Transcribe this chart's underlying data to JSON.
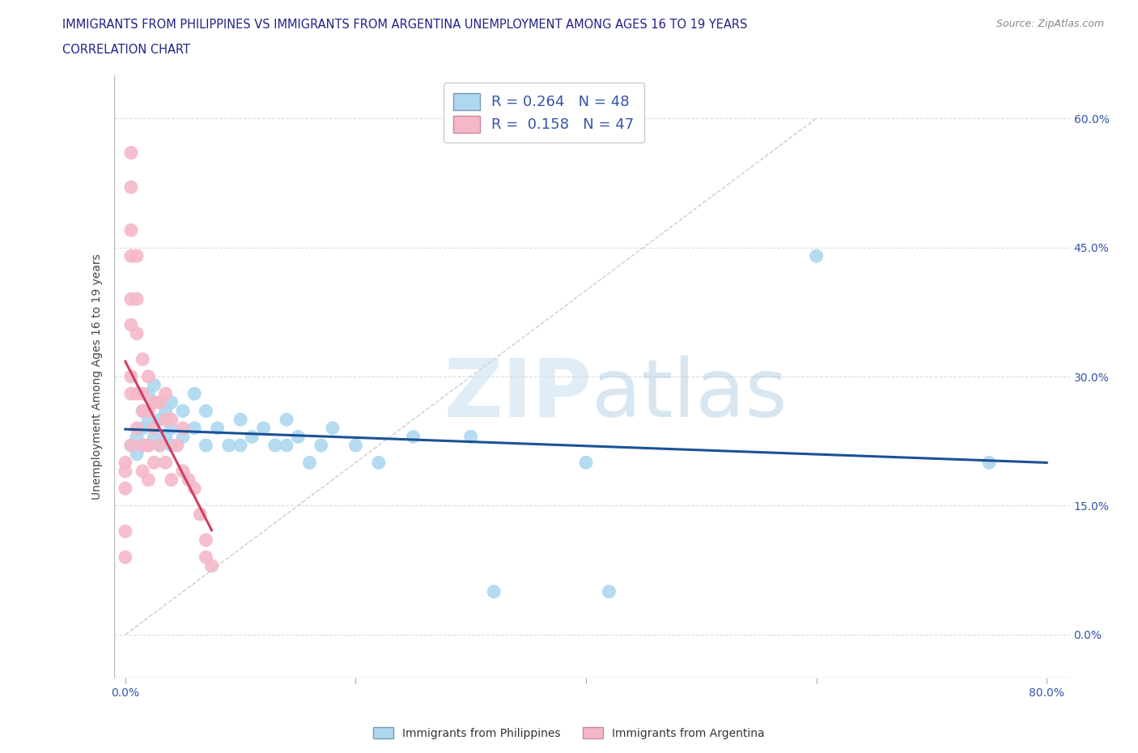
{
  "title_line1": "IMMIGRANTS FROM PHILIPPINES VS IMMIGRANTS FROM ARGENTINA UNEMPLOYMENT AMONG AGES 16 TO 19 YEARS",
  "title_line2": "CORRELATION CHART",
  "source_text": "Source: ZipAtlas.com",
  "ylabel": "Unemployment Among Ages 16 to 19 years",
  "xlabel_ticks": [
    "0.0%",
    "",
    "",
    "",
    "80.0%"
  ],
  "xlabel_tick_vals": [
    0.0,
    0.2,
    0.4,
    0.6,
    0.8
  ],
  "ytick_labels_right": [
    "0.0%",
    "15.0%",
    "30.0%",
    "45.0%",
    "60.0%"
  ],
  "ytick_vals": [
    0.0,
    0.15,
    0.3,
    0.45,
    0.6
  ],
  "xlim": [
    -0.01,
    0.82
  ],
  "ylim": [
    -0.05,
    0.65
  ],
  "philippines_color": "#ADD8F0",
  "argentina_color": "#F5B8C8",
  "trend_philippines_color": "#1A5296",
  "trend_argentina_color": "#D04060",
  "watermark_zip": "ZIP",
  "watermark_atlas": "atlas",
  "legend_R_philippines": "0.264",
  "legend_N_philippines": "48",
  "legend_R_argentina": "0.158",
  "legend_N_argentina": "47",
  "philippines_x": [
    0.005,
    0.01,
    0.01,
    0.015,
    0.015,
    0.015,
    0.02,
    0.02,
    0.02,
    0.025,
    0.025,
    0.025,
    0.03,
    0.03,
    0.03,
    0.035,
    0.035,
    0.04,
    0.04,
    0.04,
    0.05,
    0.05,
    0.06,
    0.06,
    0.07,
    0.07,
    0.08,
    0.09,
    0.1,
    0.1,
    0.11,
    0.12,
    0.13,
    0.14,
    0.14,
    0.15,
    0.16,
    0.17,
    0.18,
    0.2,
    0.22,
    0.25,
    0.3,
    0.32,
    0.4,
    0.42,
    0.6,
    0.75
  ],
  "philippines_y": [
    0.22,
    0.21,
    0.23,
    0.26,
    0.24,
    0.22,
    0.28,
    0.25,
    0.22,
    0.29,
    0.27,
    0.23,
    0.27,
    0.25,
    0.22,
    0.26,
    0.23,
    0.27,
    0.24,
    0.22,
    0.26,
    0.23,
    0.28,
    0.24,
    0.26,
    0.22,
    0.24,
    0.22,
    0.25,
    0.22,
    0.23,
    0.24,
    0.22,
    0.25,
    0.22,
    0.23,
    0.2,
    0.22,
    0.24,
    0.22,
    0.2,
    0.23,
    0.23,
    0.05,
    0.2,
    0.05,
    0.44,
    0.2
  ],
  "argentina_x": [
    0.0,
    0.0,
    0.0,
    0.0,
    0.0,
    0.005,
    0.005,
    0.005,
    0.005,
    0.005,
    0.005,
    0.005,
    0.005,
    0.005,
    0.01,
    0.01,
    0.01,
    0.01,
    0.01,
    0.015,
    0.015,
    0.015,
    0.015,
    0.015,
    0.02,
    0.02,
    0.02,
    0.02,
    0.025,
    0.025,
    0.025,
    0.03,
    0.03,
    0.035,
    0.035,
    0.035,
    0.04,
    0.04,
    0.045,
    0.05,
    0.05,
    0.055,
    0.06,
    0.065,
    0.07,
    0.07,
    0.075
  ],
  "argentina_y": [
    0.2,
    0.19,
    0.17,
    0.12,
    0.09,
    0.56,
    0.52,
    0.47,
    0.44,
    0.39,
    0.36,
    0.3,
    0.28,
    0.22,
    0.44,
    0.39,
    0.35,
    0.28,
    0.24,
    0.32,
    0.28,
    0.26,
    0.22,
    0.19,
    0.3,
    0.26,
    0.22,
    0.18,
    0.27,
    0.24,
    0.2,
    0.27,
    0.22,
    0.28,
    0.25,
    0.2,
    0.25,
    0.18,
    0.22,
    0.24,
    0.19,
    0.18,
    0.17,
    0.14,
    0.11,
    0.09,
    0.08
  ]
}
